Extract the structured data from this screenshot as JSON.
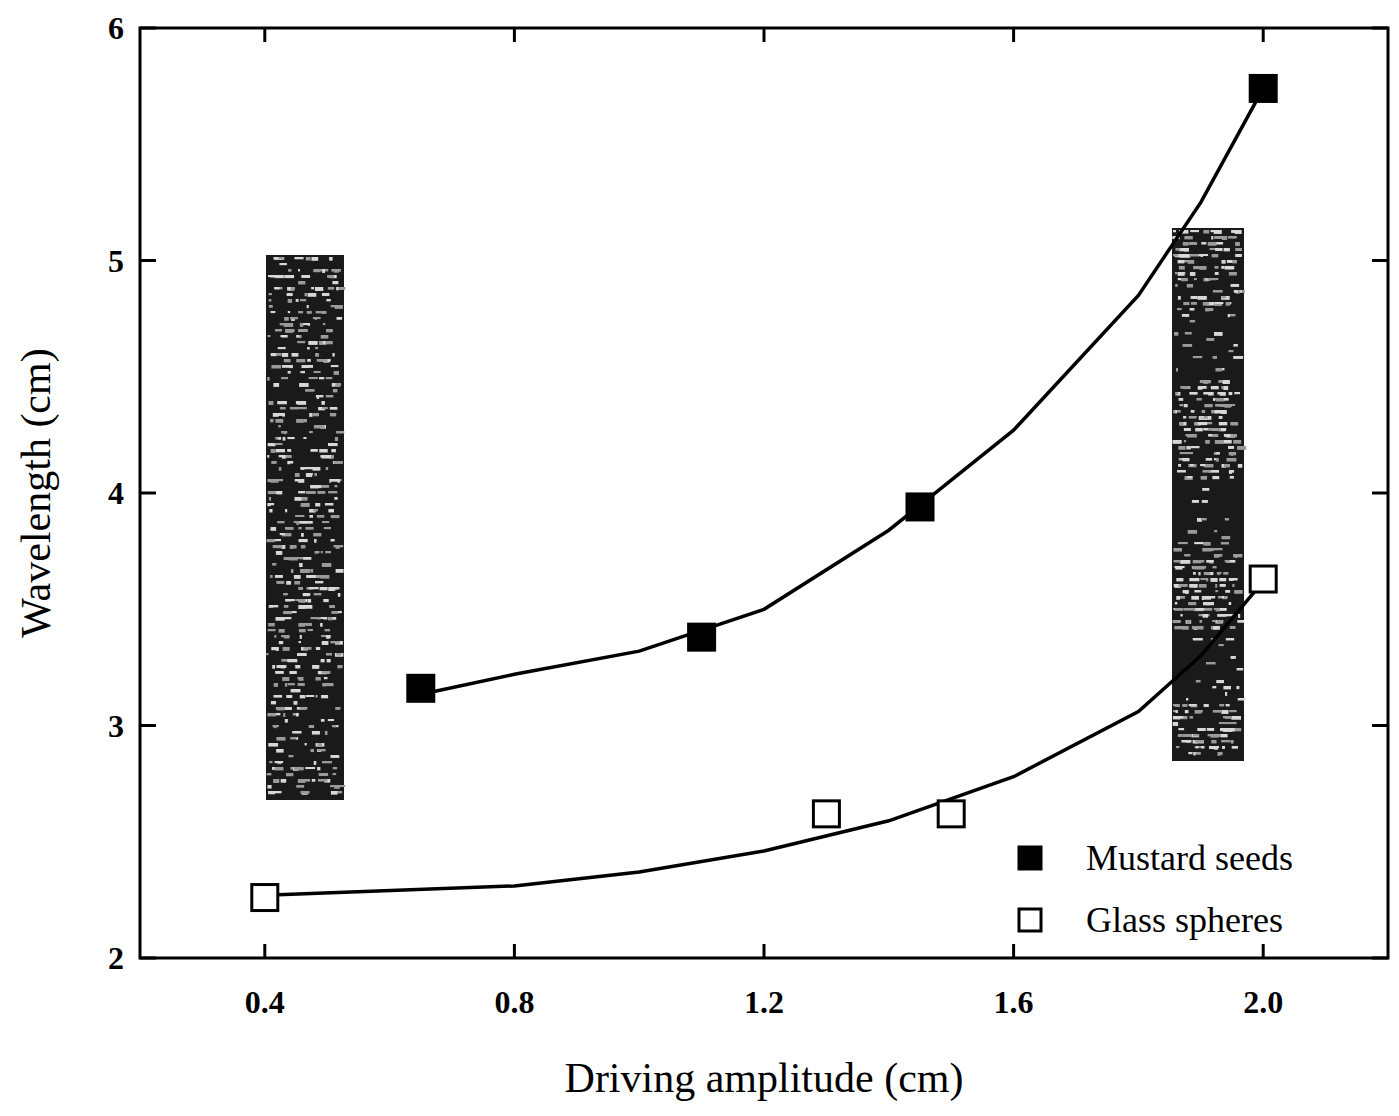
{
  "chart_data": {
    "type": "scatter",
    "x_label": "Driving amplitude (cm)",
    "y_label": "Wavelength (cm)",
    "xlim": [
      0.2,
      2.2
    ],
    "xticks": [
      0.4,
      0.8,
      1.2,
      1.6,
      {
        "value": 2.0,
        "label": "2.0"
      }
    ],
    "ylim": [
      2,
      6
    ],
    "yticks": [
      2,
      3,
      4,
      5,
      6
    ],
    "legend": "lower right",
    "series": [
      {
        "name": "Mustard seeds",
        "type": "scatter",
        "color": "#000000",
        "marker": "filled-square",
        "x": [
          0.65,
          1.1,
          1.45,
          2.0
        ],
        "values": [
          3.16,
          3.38,
          3.94,
          5.74
        ]
      },
      {
        "name": "Glass spheres",
        "type": "scatter",
        "color": "#000000",
        "marker": "open-square",
        "x": [
          0.4,
          1.3,
          1.5,
          2.0
        ],
        "values": [
          2.26,
          2.62,
          2.62,
          3.63
        ]
      },
      {
        "type": "line",
        "color": "#000000",
        "line_style": "solid",
        "x": [
          0.66,
          0.8,
          1.0,
          1.2,
          1.4,
          1.6,
          1.8,
          1.9,
          2.0
        ],
        "values": [
          3.14,
          3.22,
          3.32,
          3.5,
          3.84,
          4.27,
          4.85,
          5.25,
          5.74
        ]
      },
      {
        "type": "line",
        "color": "#000000",
        "line_style": "solid",
        "x": [
          0.4,
          0.8,
          1.0,
          1.2,
          1.4,
          1.6,
          1.8,
          1.9,
          2.0
        ],
        "values": [
          2.27,
          2.31,
          2.37,
          2.46,
          2.59,
          2.78,
          3.06,
          3.3,
          3.62
        ]
      }
    ]
  }
}
